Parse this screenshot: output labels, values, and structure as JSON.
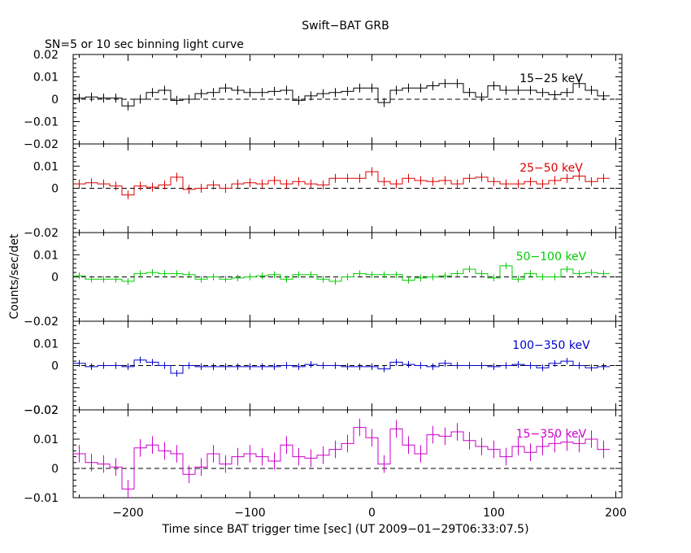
{
  "title": "Swift−BAT GRB",
  "subtitle": "SN=5 or 10 sec binning light curve",
  "xlabel": "Time since BAT trigger time [sec] (UT 2009−01−29T06:33:07.5)",
  "ylabel": "Counts/sec/det",
  "chart_data": {
    "type": "line",
    "step": true,
    "bin_width": 10,
    "xlim": [
      -245,
      205
    ],
    "x_ticks": [
      "−200",
      "−100",
      "0",
      "100",
      "200"
    ],
    "x_tick_values": [
      -200,
      -100,
      0,
      100,
      200
    ],
    "x": [
      -240,
      -230,
      -220,
      -210,
      -200,
      -190,
      -180,
      -170,
      -160,
      -150,
      -140,
      -130,
      -120,
      -110,
      -100,
      -90,
      -80,
      -70,
      -60,
      -50,
      -40,
      -30,
      -20,
      -10,
      0,
      10,
      20,
      30,
      40,
      50,
      60,
      70,
      80,
      90,
      100,
      110,
      120,
      130,
      140,
      150,
      160,
      170,
      180,
      190
    ],
    "panels": [
      {
        "label": "15−25 keV",
        "color": "#000000",
        "ylim": [
          -0.02,
          0.02
        ],
        "y_ticks": [
          "−0.01",
          "0",
          "0.01",
          "0.02"
        ],
        "y_tick_values": [
          -0.01,
          0,
          0.01,
          0.02
        ],
        "bottom_tick": "−0.02",
        "values": [
          0.0005,
          0.001,
          0.0005,
          0.0005,
          -0.003,
          0,
          0.003,
          0.004,
          -0.0005,
          0,
          0.0025,
          0.003,
          0.005,
          0.004,
          0.003,
          0.003,
          0.0035,
          0.004,
          -0.0005,
          0.0015,
          0.0025,
          0.003,
          0.0035,
          0.005,
          0.005,
          -0.0015,
          0.004,
          0.005,
          0.005,
          0.006,
          0.007,
          0.007,
          0.003,
          0.001,
          0.006,
          0.004,
          0.004,
          0.004,
          0.003,
          0.002,
          0.003,
          0.007,
          0.004,
          0.0015
        ],
        "errors": [
          0.002,
          0.002,
          0.002,
          0.002,
          0.002,
          0.002,
          0.002,
          0.002,
          0.002,
          0.002,
          0.002,
          0.002,
          0.002,
          0.002,
          0.002,
          0.002,
          0.002,
          0.002,
          0.002,
          0.002,
          0.002,
          0.002,
          0.002,
          0.002,
          0.002,
          0.002,
          0.002,
          0.002,
          0.002,
          0.002,
          0.002,
          0.002,
          0.002,
          0.002,
          0.002,
          0.002,
          0.002,
          0.002,
          0.002,
          0.002,
          0.002,
          0.002,
          0.002,
          0.002
        ]
      },
      {
        "label": "25−50 keV",
        "color": "#dd0000",
        "ylim": [
          -0.02,
          0.02
        ],
        "y_ticks": [
          "0",
          "0.01"
        ],
        "y_tick_values": [
          0,
          0.01
        ],
        "bottom_tick": "−0.02",
        "values": [
          0.002,
          0.0025,
          0.002,
          0.001,
          -0.003,
          0.001,
          0.0005,
          0.0015,
          0.005,
          -0.0005,
          0,
          0.0015,
          0,
          0.002,
          0.0025,
          0.002,
          0.0035,
          0.002,
          0.003,
          0.002,
          0.0015,
          0.0045,
          0.0045,
          0.0045,
          0.0075,
          0.003,
          0.002,
          0.0045,
          0.0035,
          0.003,
          0.0035,
          0.002,
          0.0045,
          0.005,
          0.003,
          0.002,
          0.002,
          0.003,
          0.002,
          0.0035,
          0.0045,
          0.0055,
          0.003,
          0.0045
        ],
        "errors": [
          0.002,
          0.002,
          0.002,
          0.002,
          0.002,
          0.002,
          0.002,
          0.002,
          0.002,
          0.002,
          0.002,
          0.002,
          0.002,
          0.002,
          0.002,
          0.002,
          0.002,
          0.002,
          0.002,
          0.002,
          0.002,
          0.002,
          0.002,
          0.002,
          0.002,
          0.002,
          0.002,
          0.002,
          0.002,
          0.002,
          0.002,
          0.002,
          0.002,
          0.002,
          0.002,
          0.002,
          0.002,
          0.002,
          0.002,
          0.002,
          0.002,
          0.002,
          0.002,
          0.002
        ]
      },
      {
        "label": "50−100 keV",
        "color": "#00cc00",
        "ylim": [
          -0.02,
          0.02
        ],
        "y_ticks": [
          "0",
          "0.01"
        ],
        "y_tick_values": [
          0,
          0.01
        ],
        "bottom_tick": "−0.02",
        "values": [
          0.0005,
          -0.001,
          -0.001,
          -0.001,
          -0.002,
          0.0015,
          0.002,
          0.0015,
          0.0015,
          0.001,
          -0.001,
          0,
          -0.001,
          -0.0005,
          0,
          0.0005,
          0.001,
          -0.001,
          0.001,
          0.001,
          -0.001,
          -0.002,
          0,
          0.0015,
          0.001,
          0.001,
          0.001,
          -0.0015,
          -0.0005,
          0,
          0.0005,
          0.0015,
          0.0035,
          0.0015,
          -0.0005,
          0.005,
          -0.001,
          0.0015,
          0,
          0,
          0.0035,
          0.0015,
          0.002,
          0.0015
        ],
        "errors": [
          0.0015,
          0.0015,
          0.0015,
          0.0015,
          0.0015,
          0.0015,
          0.0015,
          0.0015,
          0.0015,
          0.0015,
          0.0015,
          0.0015,
          0.0015,
          0.0015,
          0.0015,
          0.0015,
          0.0015,
          0.0015,
          0.0015,
          0.0015,
          0.0015,
          0.0015,
          0.0015,
          0.0015,
          0.0015,
          0.0015,
          0.0015,
          0.0015,
          0.0015,
          0.0015,
          0.0015,
          0.0015,
          0.0015,
          0.0015,
          0.0015,
          0.0015,
          0.0015,
          0.0015,
          0.0015,
          0.0015,
          0.0015,
          0.0015,
          0.0015,
          0.0015
        ]
      },
      {
        "label": "100−350 keV",
        "color": "#0000cc",
        "ylim": [
          -0.02,
          0.02
        ],
        "y_ticks": [
          "0",
          "0.01"
        ],
        "y_tick_values": [
          0,
          0.01
        ],
        "bottom_tick": "−0.02",
        "values": [
          0.001,
          -0.0005,
          0,
          0,
          -0.0005,
          0.0025,
          0.0015,
          0,
          -0.0035,
          0,
          -0.0005,
          -0.0005,
          -0.0005,
          -0.0005,
          -0.0005,
          -0.0005,
          -0.0005,
          0,
          -0.0005,
          0.0005,
          0,
          0,
          -0.0005,
          -0.0005,
          -0.0005,
          -0.0015,
          0.0015,
          0.0005,
          0,
          -0.0005,
          0.001,
          0,
          0,
          0,
          -0.0005,
          0,
          0.0005,
          0,
          -0.001,
          0.001,
          0.002,
          0,
          -0.001,
          -0.0005
        ],
        "errors": [
          0.0015,
          0.0015,
          0.0015,
          0.0015,
          0.0015,
          0.0015,
          0.0015,
          0.0015,
          0.0015,
          0.0015,
          0.0015,
          0.0015,
          0.0015,
          0.0015,
          0.0015,
          0.0015,
          0.0015,
          0.0015,
          0.0015,
          0.0015,
          0.0015,
          0.0015,
          0.0015,
          0.0015,
          0.0015,
          0.0015,
          0.0015,
          0.0015,
          0.0015,
          0.0015,
          0.0015,
          0.0015,
          0.0015,
          0.0015,
          0.0015,
          0.0015,
          0.0015,
          0.0015,
          0.0015,
          0.0015,
          0.0015,
          0.0015,
          0.0015,
          0.0015
        ]
      },
      {
        "label": "15−350 keV",
        "color": "#cc00cc",
        "ylim": [
          -0.01,
          0.02
        ],
        "y_ticks": [
          "0",
          "0.01"
        ],
        "y_tick_values": [
          0,
          0.01
        ],
        "bottom_tick": "−0.01",
        "top_tick": "−0.02",
        "values": [
          0.005,
          0.002,
          0.0015,
          0.0005,
          -0.007,
          0.007,
          0.008,
          0.006,
          0.005,
          -0.002,
          0.0005,
          0.005,
          0.0015,
          0.004,
          0.005,
          0.004,
          0.0025,
          0.008,
          0.004,
          0.0035,
          0.0045,
          0.0065,
          0.0085,
          0.014,
          0.0105,
          0.0015,
          0.0135,
          0.008,
          0.005,
          0.0115,
          0.011,
          0.0125,
          0.0095,
          0.0075,
          0.0065,
          0.004,
          0.0075,
          0.0055,
          0.0075,
          0.0085,
          0.009,
          0.0085,
          0.01,
          0.0065
        ],
        "errors": [
          0.003,
          0.003,
          0.003,
          0.003,
          0.003,
          0.003,
          0.003,
          0.003,
          0.003,
          0.003,
          0.003,
          0.003,
          0.003,
          0.003,
          0.003,
          0.003,
          0.003,
          0.003,
          0.003,
          0.003,
          0.003,
          0.003,
          0.003,
          0.003,
          0.003,
          0.003,
          0.003,
          0.003,
          0.003,
          0.003,
          0.003,
          0.003,
          0.003,
          0.003,
          0.003,
          0.003,
          0.003,
          0.003,
          0.003,
          0.003,
          0.003,
          0.003,
          0.003,
          0.003
        ]
      }
    ]
  }
}
